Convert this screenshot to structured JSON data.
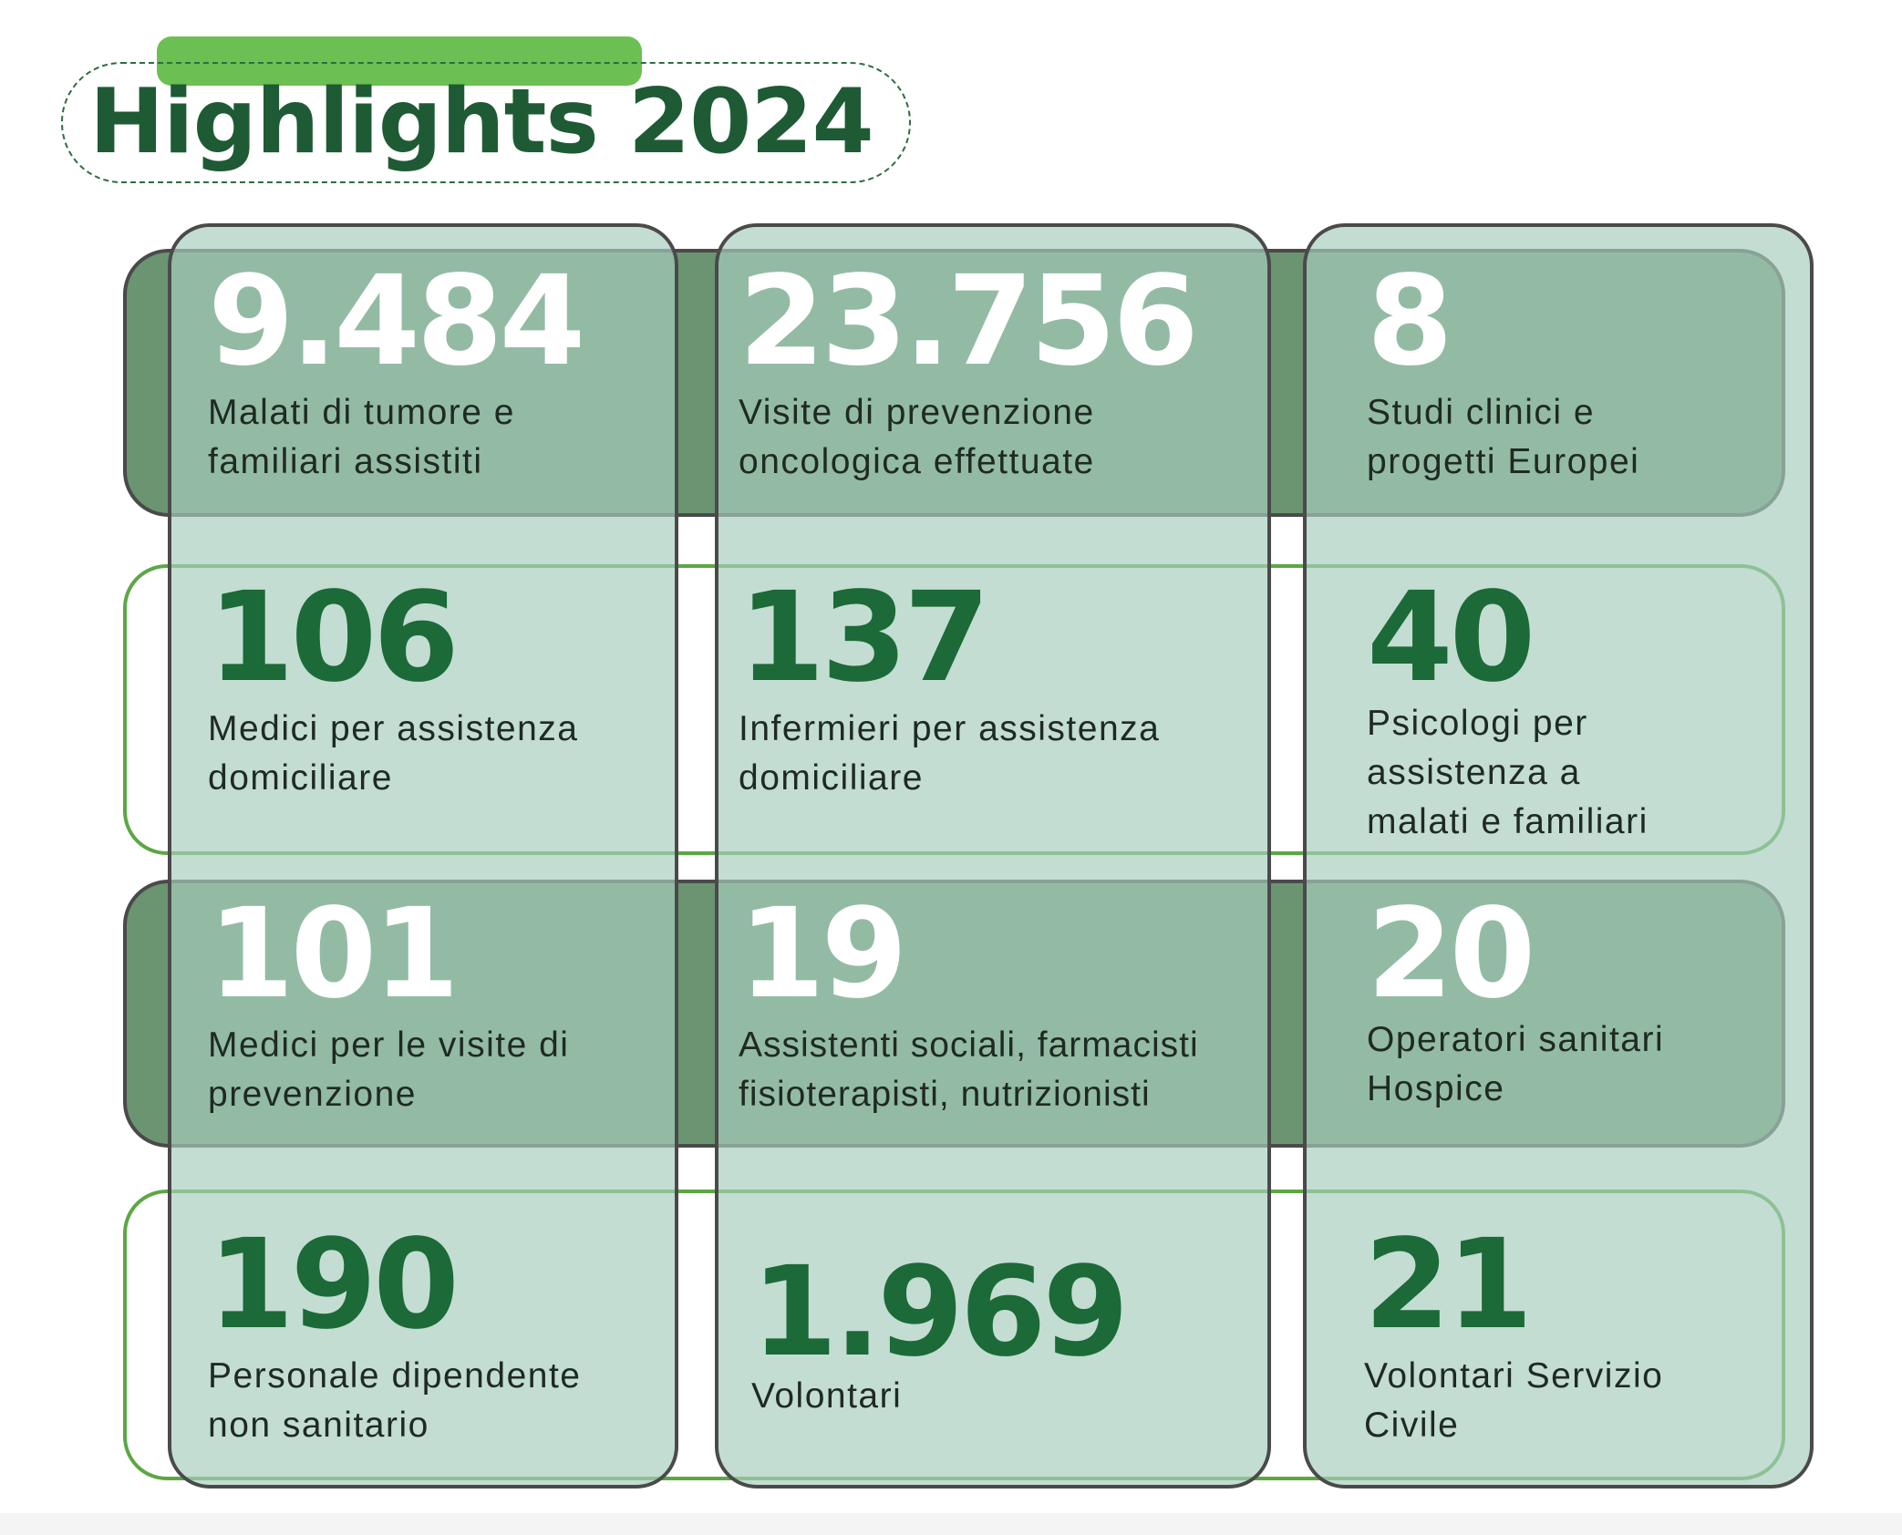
{
  "title": "Highlights 2024",
  "colors": {
    "dark_green_text": "#1e5b34",
    "accent_green": "#6cbf52",
    "dark_row_fill": "#6b9570",
    "column_fill": "#a6cdbc",
    "light_row_border": "#5ca744"
  },
  "stats": [
    {
      "value": "9.484",
      "label": [
        "Malati di tumore e",
        "familiari assistiti"
      ]
    },
    {
      "value": "23.756",
      "label": [
        "Visite di prevenzione",
        "oncologica effettuate"
      ]
    },
    {
      "value": "8",
      "label": [
        "Studi clinici e",
        "progetti Europei"
      ]
    },
    {
      "value": "106",
      "label": [
        "Medici per assistenza",
        "domiciliare"
      ]
    },
    {
      "value": "137",
      "label": [
        "Infermieri per assistenza",
        "domiciliare"
      ]
    },
    {
      "value": "40",
      "label": [
        "Psicologi per",
        "assistenza a",
        "malati e familiari"
      ]
    },
    {
      "value": "101",
      "label": [
        "Medici per le visite di",
        "prevenzione"
      ]
    },
    {
      "value": "19",
      "label": [
        "Assistenti sociali, farmacisti",
        "fisioterapisti, nutrizionisti"
      ]
    },
    {
      "value": "20",
      "label": [
        "Operatori sanitari",
        "Hospice"
      ]
    },
    {
      "value": "190",
      "label": [
        "Personale dipendente",
        "non sanitario"
      ]
    },
    {
      "value": "1.969",
      "label": [
        "Volontari"
      ]
    },
    {
      "value": "21",
      "label": [
        "Volontari Servizio",
        "Civile"
      ]
    }
  ]
}
